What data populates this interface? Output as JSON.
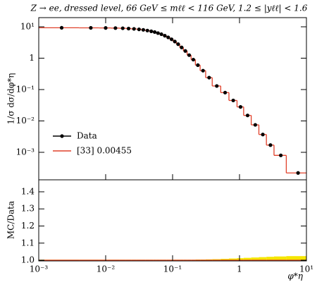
{
  "chart_data": {
    "type": "histogram",
    "title": "Z → ee, dressed level, 66 GeV ≤ mℓℓ < 116 GeV, 1.2 ≤ |yℓℓ| < 1.6",
    "ylabel": "1/σ dσ/dφ*η",
    "xlabel": "φ*η",
    "ratio_ylabel": "MC/Data",
    "log_x": true,
    "log_y": true,
    "xlim": [
      0.001,
      10
    ],
    "xticks": [
      {
        "value": 0.001,
        "label": "10⁻³"
      },
      {
        "value": 0.01,
        "label": "10⁻²"
      },
      {
        "value": 0.1,
        "label": "10⁻¹"
      },
      1,
      {
        "value": 10,
        "label": "10¹"
      }
    ],
    "ylim": [
      0.000133,
      19.6
    ],
    "yticks": [
      {
        "value": 10,
        "label": "10¹"
      },
      1,
      {
        "value": 0.1,
        "label": "10⁻¹"
      },
      {
        "value": 0.01,
        "label": "10⁻²"
      },
      {
        "value": 0.001,
        "label": "10⁻³"
      }
    ],
    "ratio_ylim": [
      0.996,
      1.47
    ],
    "ratio_yticks": [
      {
        "value": 1,
        "label": "1.0"
      },
      1.1,
      1.2,
      1.3,
      1.4
    ],
    "legend": "lower left",
    "bins": [
      0.001,
      0.004,
      0.008,
      0.012,
      0.016,
      0.02,
      0.024,
      0.029,
      0.034,
      0.039,
      0.045,
      0.051,
      0.057,
      0.064,
      0.072,
      0.081,
      0.091,
      0.102,
      0.114,
      0.128,
      0.145,
      0.165,
      0.189,
      0.219,
      0.258,
      0.312,
      0.391,
      0.524,
      0.695,
      0.918,
      1.153,
      1.496,
      1.947,
      2.522,
      3.277,
      5.0,
      10.0
    ],
    "x": [
      0.0022,
      0.006,
      0.01,
      0.014,
      0.018,
      0.022,
      0.0265,
      0.0315,
      0.0365,
      0.042,
      0.048,
      0.054,
      0.0605,
      0.068,
      0.0765,
      0.086,
      0.0965,
      0.108,
      0.121,
      0.1365,
      0.155,
      0.177,
      0.204,
      0.2385,
      0.285,
      0.3515,
      0.4575,
      0.6095,
      0.8065,
      1.0355,
      1.32,
      1.72,
      2.23,
      2.9,
      4.14,
      7.5
    ],
    "series": [
      {
        "name": "Data",
        "color": "#000000",
        "values": [
          9.3,
          9.25,
          9.2,
          9.1,
          9.0,
          8.8,
          8.6,
          8.3,
          8.0,
          7.6,
          7.2,
          6.8,
          6.3,
          5.8,
          5.2,
          4.6,
          4.0,
          3.4,
          2.8,
          2.2,
          1.7,
          1.25,
          0.9,
          0.6,
          0.4,
          0.24,
          0.13,
          0.08,
          0.045,
          0.028,
          0.015,
          0.0075,
          0.0037,
          0.0017,
          0.0008,
          0.00022
        ]
      },
      {
        "name": "[33] 0.00455",
        "color": "#e0402a",
        "values": [
          9.3,
          9.25,
          9.2,
          9.1,
          9.0,
          8.8,
          8.6,
          8.3,
          8.0,
          7.6,
          7.2,
          6.8,
          6.3,
          5.8,
          5.2,
          4.6,
          4.0,
          3.4,
          2.8,
          2.2,
          1.7,
          1.25,
          0.9,
          0.6,
          0.4,
          0.24,
          0.13,
          0.08,
          0.045,
          0.028,
          0.015,
          0.0075,
          0.0037,
          0.0017,
          0.0008,
          0.00022
        ]
      }
    ],
    "ratio": {
      "color": "#e0402a",
      "band_color": "#f5e600",
      "values": [
        1,
        1,
        1,
        1,
        1,
        1,
        1,
        1,
        1,
        1,
        1,
        1,
        1,
        1,
        1,
        1,
        1,
        1,
        1,
        1,
        1,
        1,
        1,
        1,
        1,
        1,
        1,
        1,
        1,
        1,
        1,
        1,
        1,
        1,
        1,
        1
      ],
      "errors": [
        0.003,
        0.003,
        0.003,
        0.003,
        0.003,
        0.003,
        0.003,
        0.003,
        0.003,
        0.003,
        0.003,
        0.003,
        0.003,
        0.003,
        0.003,
        0.003,
        0.003,
        0.003,
        0.003,
        0.003,
        0.003,
        0.003,
        0.003,
        0.004,
        0.004,
        0.005,
        0.006,
        0.008,
        0.01,
        0.012,
        0.014,
        0.016,
        0.018,
        0.02,
        0.022,
        0.024
      ]
    }
  }
}
